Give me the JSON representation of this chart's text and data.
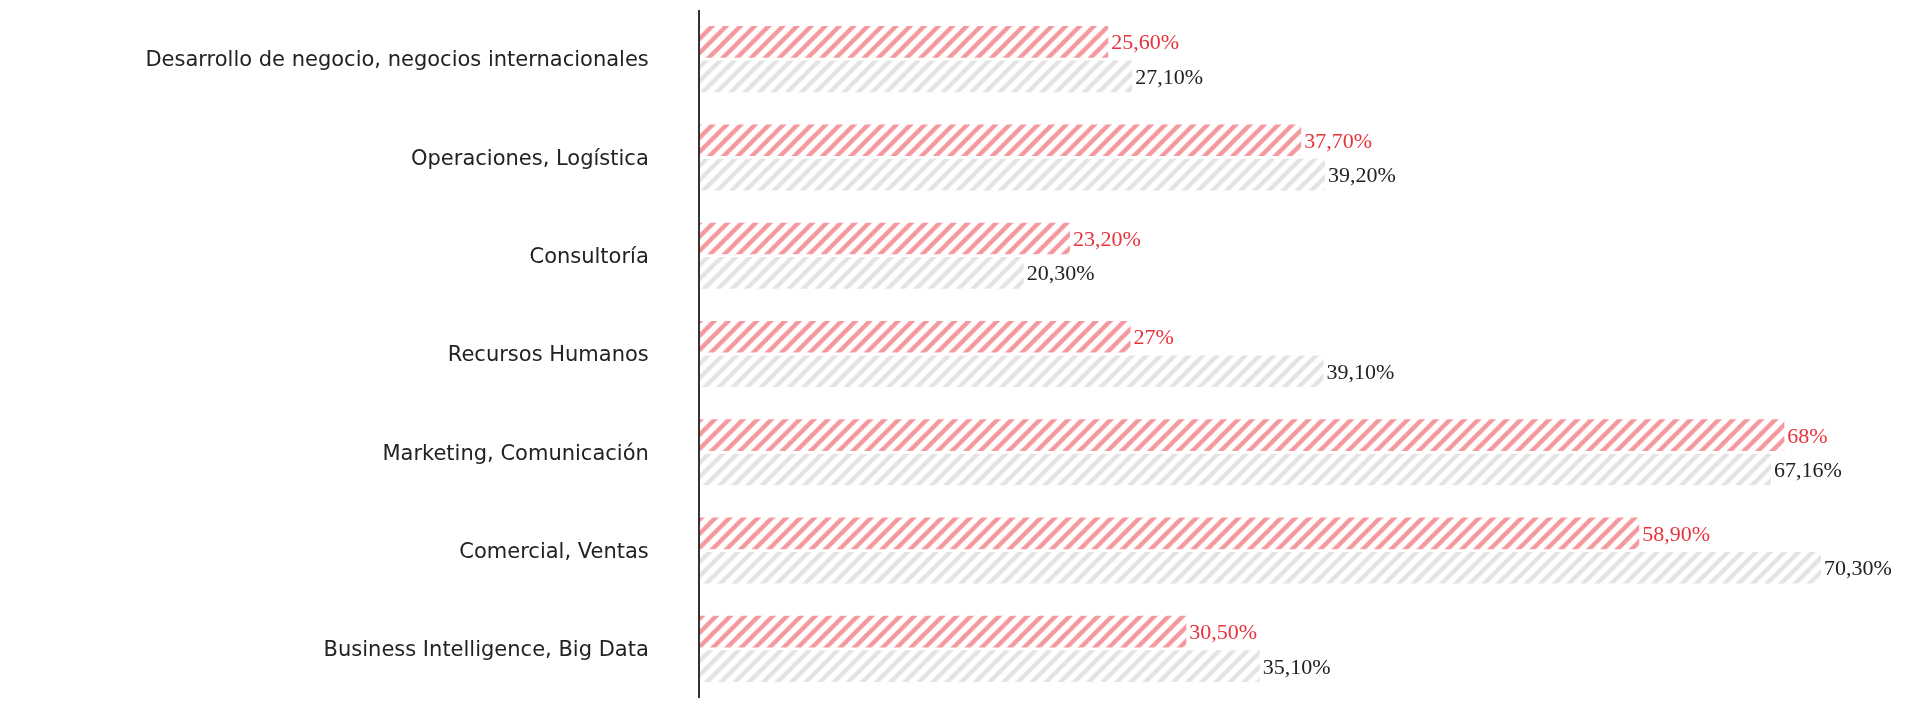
{
  "chart_data": {
    "type": "bar",
    "orientation": "horizontal",
    "categories": [
      "Desarrollo de negocio, negocios internacionales",
      "Operaciones, Logística",
      "Consultoría",
      "Recursos Humanos",
      "Marketing, Comunicación",
      "Comercial, Ventas",
      "Business Intelligence, Big Data"
    ],
    "series": [
      {
        "color": "#e8323c",
        "values": [
          25.6,
          37.7,
          23.2,
          27,
          68,
          58.9,
          30.5
        ],
        "value_labels": [
          "25,60%",
          "37,70%",
          "23,20%",
          "27%",
          "68%",
          "58,90%",
          "30,50%"
        ]
      },
      {
        "color": "#c8c8c8",
        "values": [
          27.1,
          39.2,
          20.3,
          39.1,
          67.16,
          70.3,
          35.1
        ],
        "value_labels": [
          "27,10%",
          "39,20%",
          "20,30%",
          "39,10%",
          "67,16%",
          "70,30%",
          "35,10%"
        ]
      }
    ],
    "tick_labels": "y"
  }
}
